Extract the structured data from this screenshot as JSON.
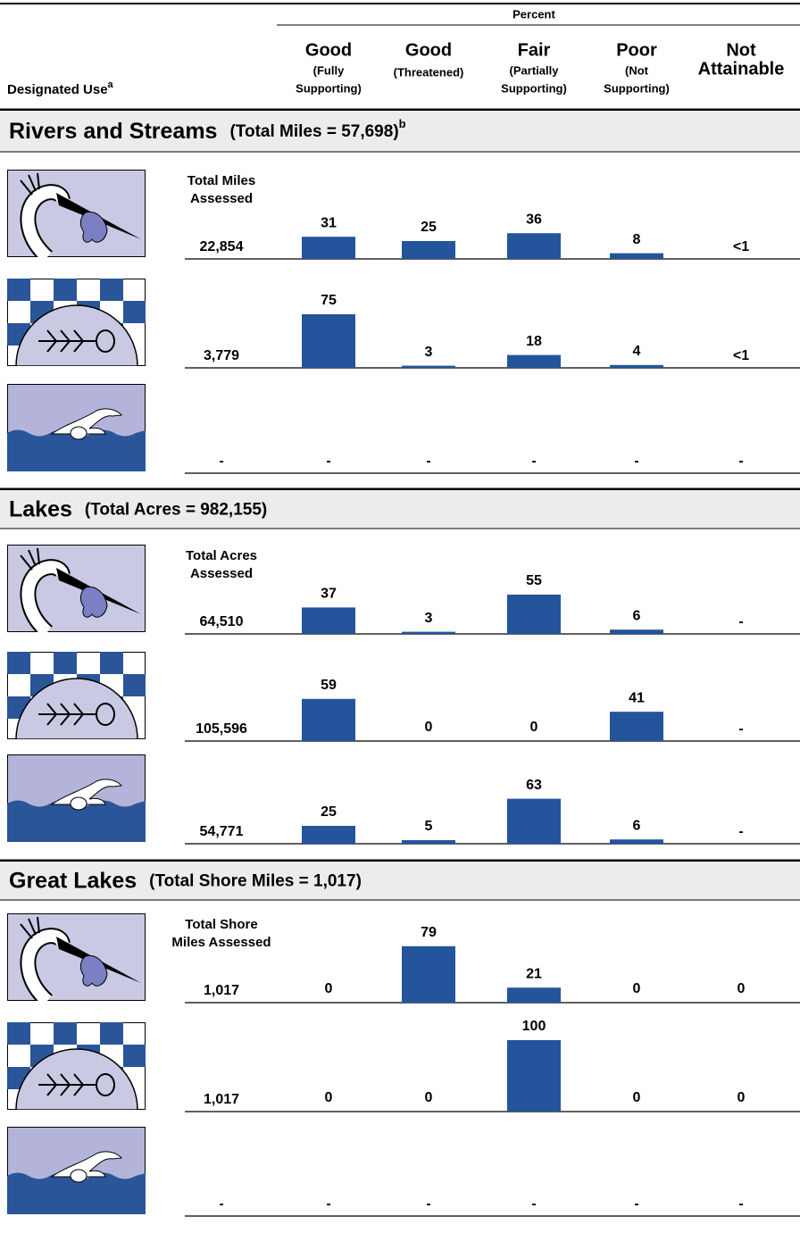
{
  "header": {
    "percent": "Percent",
    "designated_use": "Designated Use",
    "designated_use_note": "a",
    "columns": [
      {
        "title_lines": [
          "Good"
        ],
        "note_lines": [
          "(Fully",
          "Supporting)"
        ]
      },
      {
        "title_lines": [
          "Good"
        ],
        "note_lines": [
          "(Threatened)"
        ]
      },
      {
        "title_lines": [
          "Fair"
        ],
        "note_lines": [
          "(Partially",
          "Supporting)"
        ]
      },
      {
        "title_lines": [
          "Poor"
        ],
        "note_lines": [
          "(Not",
          "Supporting)"
        ]
      },
      {
        "title_lines": [
          "Not",
          "Attainable"
        ]
      }
    ]
  },
  "sections": [
    {
      "title": "Rivers and Streams",
      "subtitle": "(Total Miles = 57,698)",
      "note": "b",
      "assessed_label": [
        "Total Miles",
        "Assessed"
      ],
      "rows": [
        {
          "total": "22,854",
          "values": [
            31,
            25,
            36,
            8,
            "<1"
          ]
        },
        {
          "total": "3,779",
          "values": [
            75,
            3,
            18,
            4,
            "<1"
          ]
        },
        {
          "total": "-",
          "values": [
            "-",
            "-",
            "-",
            "-",
            "-"
          ]
        }
      ]
    },
    {
      "title": "Lakes",
      "subtitle": "(Total Acres = 982,155)",
      "assessed_label": [
        "Total Acres",
        "Assessed"
      ],
      "rows": [
        {
          "total": "64,510",
          "values": [
            37,
            3,
            55,
            6,
            "-"
          ]
        },
        {
          "total": "105,596",
          "values": [
            59,
            0,
            0,
            41,
            "-"
          ]
        },
        {
          "total": "54,771",
          "values": [
            25,
            5,
            63,
            6,
            "-"
          ]
        }
      ]
    },
    {
      "title": "Great Lakes",
      "subtitle": "(Total Shore Miles = 1,017)",
      "assessed_label": [
        "Total Shore",
        "Miles Assessed"
      ],
      "rows": [
        {
          "total": "1,017",
          "values": [
            0,
            79,
            21,
            0,
            0
          ]
        },
        {
          "total": "1,017",
          "values": [
            0,
            0,
            100,
            0,
            0
          ]
        },
        {
          "total": "-",
          "values": [
            "-",
            "-",
            "-",
            "-",
            "-"
          ]
        }
      ]
    }
  ]
}
